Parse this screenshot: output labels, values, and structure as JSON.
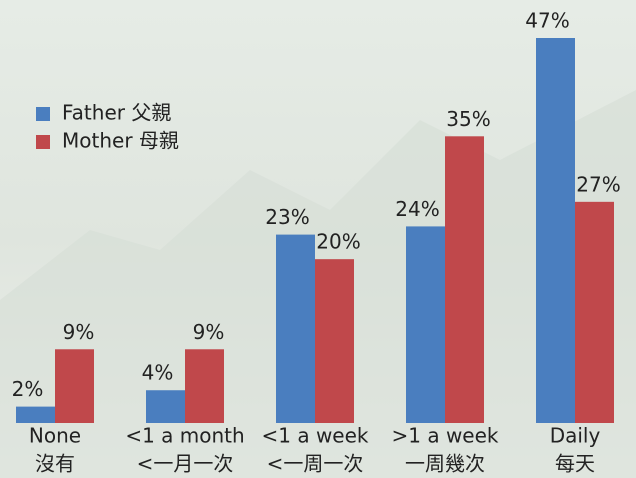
{
  "chart_data": {
    "type": "bar",
    "categories": [
      [
        "None",
        "沒有"
      ],
      [
        "<1 a month",
        "<一月一次"
      ],
      [
        "<1 a week",
        "<一周一次"
      ],
      [
        ">1 a week",
        "一周幾次"
      ],
      [
        "Daily",
        "每天"
      ]
    ],
    "series": [
      {
        "name": "Father 父親",
        "color": "#4a7ebf",
        "values": [
          2,
          4,
          23,
          24,
          47
        ],
        "value_labels": [
          "2%",
          "4%",
          "23%",
          "24%",
          "47%"
        ]
      },
      {
        "name": "Mother 母親",
        "color": "#c0484b",
        "values": [
          9,
          9,
          20,
          35,
          27
        ],
        "value_labels": [
          "9%",
          "9%",
          "20%",
          "35%",
          "27%"
        ]
      }
    ],
    "legend": "upper left"
  }
}
